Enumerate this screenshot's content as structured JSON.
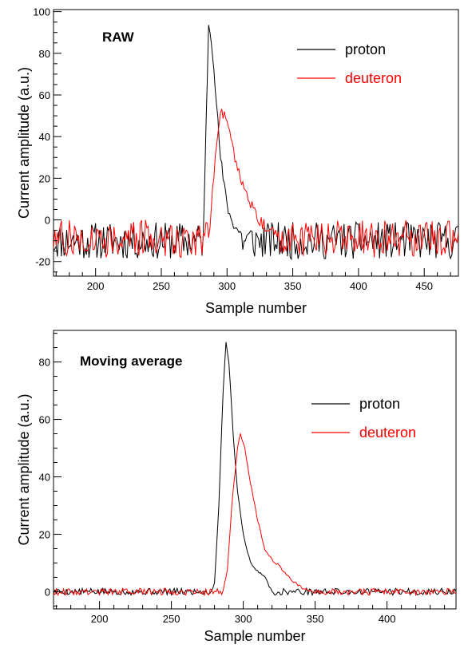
{
  "chart_data": [
    {
      "type": "line",
      "title": "RAW",
      "xlabel": "Sample number",
      "ylabel": "Current amplitude (a.u.)",
      "xlim": [
        168,
        476
      ],
      "ylim": [
        -27,
        101
      ],
      "xticks": [
        200,
        250,
        300,
        350,
        400,
        450
      ],
      "yticks": [
        -20,
        0,
        20,
        40,
        60,
        80,
        100
      ],
      "grid": false,
      "legend_position": "top-right",
      "series": [
        {
          "name": "proton",
          "color": "#000000",
          "noise": {
            "start": 168,
            "end": 476,
            "base": -10,
            "amplitude": 9,
            "seed": 11
          },
          "keypoints": [
            [
              282,
              -10
            ],
            [
              285,
              70
            ],
            [
              286,
              94
            ],
            [
              288,
              88
            ],
            [
              290,
              75
            ],
            [
              292,
              55
            ],
            [
              295,
              30
            ],
            [
              298,
              15
            ],
            [
              302,
              2
            ],
            [
              306,
              -3
            ],
            [
              312,
              -8
            ]
          ]
        },
        {
          "name": "deuteron",
          "color": "#ff0000",
          "noise": {
            "start": 168,
            "end": 476,
            "base": -9,
            "amplitude": 9,
            "seed": 27
          },
          "keypoints": [
            [
              286,
              -9
            ],
            [
              289,
              15
            ],
            [
              292,
              38
            ],
            [
              296,
              52
            ],
            [
              300,
              48
            ],
            [
              303,
              38
            ],
            [
              307,
              28
            ],
            [
              312,
              18
            ],
            [
              318,
              8
            ],
            [
              325,
              0
            ],
            [
              332,
              -5
            ],
            [
              340,
              -8
            ]
          ]
        }
      ]
    },
    {
      "type": "line",
      "title": "Moving average",
      "xlabel": "Sample number",
      "ylabel": "Current amplitude (a.u.)",
      "xlim": [
        168,
        448
      ],
      "ylim": [
        -6,
        91
      ],
      "xticks": [
        200,
        250,
        300,
        350,
        400
      ],
      "yticks": [
        0,
        20,
        40,
        60,
        80
      ],
      "grid": false,
      "legend_position": "top-right",
      "series": [
        {
          "name": "proton",
          "color": "#000000",
          "noise": {
            "start": 168,
            "end": 448,
            "base": 0,
            "amplitude": 1.2,
            "seed": 5
          },
          "keypoints": [
            [
              278,
              0
            ],
            [
              280,
              3
            ],
            [
              283,
              30
            ],
            [
              286,
              70
            ],
            [
              288,
              87
            ],
            [
              290,
              80
            ],
            [
              293,
              55
            ],
            [
              296,
              35
            ],
            [
              300,
              20
            ],
            [
              305,
              10
            ],
            [
              310,
              7
            ],
            [
              314,
              6
            ],
            [
              318,
              2
            ],
            [
              322,
              -1
            ],
            [
              326,
              0
            ]
          ]
        },
        {
          "name": "deuteron",
          "color": "#ff0000",
          "noise": {
            "start": 168,
            "end": 448,
            "base": 0,
            "amplitude": 1.2,
            "seed": 9
          },
          "keypoints": [
            [
              286,
              0
            ],
            [
              289,
              8
            ],
            [
              292,
              30
            ],
            [
              296,
              50
            ],
            [
              298,
              55
            ],
            [
              301,
              50
            ],
            [
              305,
              38
            ],
            [
              310,
              25
            ],
            [
              315,
              15
            ],
            [
              320,
              11
            ],
            [
              325,
              9
            ],
            [
              330,
              6
            ],
            [
              336,
              3
            ],
            [
              342,
              1
            ],
            [
              350,
              0
            ]
          ]
        }
      ]
    }
  ]
}
